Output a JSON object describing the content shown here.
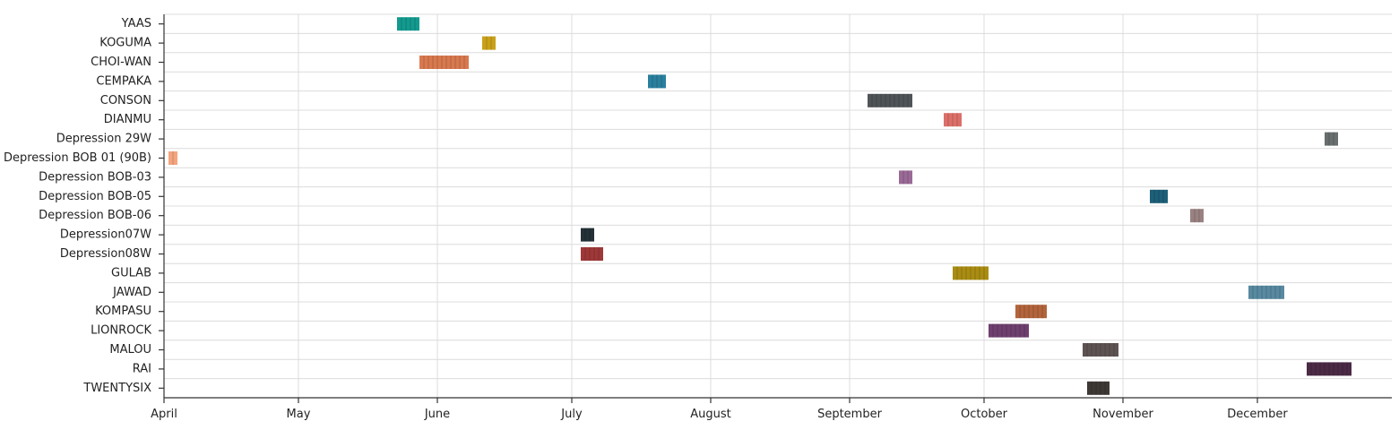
{
  "chart_data": {
    "type": "timeline",
    "x_axis": {
      "ticks": [
        "April",
        "May",
        "June",
        "July",
        "August",
        "September",
        "October",
        "November",
        "December"
      ],
      "range": [
        "2021-04-01",
        "2021-12-31"
      ]
    },
    "grid": true,
    "rows": [
      {
        "label": "YAAS",
        "start": "2021-05-23",
        "end": "2021-05-28",
        "color": "#139a8f"
      },
      {
        "label": "KOGUMA",
        "start": "2021-06-11",
        "end": "2021-06-14",
        "color": "#c9a11a"
      },
      {
        "label": "CHOI-WAN",
        "start": "2021-05-28",
        "end": "2021-06-08",
        "color": "#d8794f"
      },
      {
        "label": "CEMPAKA",
        "start": "2021-07-18",
        "end": "2021-07-22",
        "color": "#2a7f9e"
      },
      {
        "label": "CONSON",
        "start": "2021-09-05",
        "end": "2021-09-15",
        "color": "#4f5457"
      },
      {
        "label": "DIANMU",
        "start": "2021-09-22",
        "end": "2021-09-26",
        "color": "#dc6f6a"
      },
      {
        "label": "Depression 29W",
        "start": "2021-12-16",
        "end": "2021-12-19",
        "color": "#686e6e"
      },
      {
        "label": "Depression BOB 01 (90B)",
        "start": "2021-04-02",
        "end": "2021-04-04",
        "color": "#f4a47e"
      },
      {
        "label": "Depression BOB-03",
        "start": "2021-09-12",
        "end": "2021-09-15",
        "color": "#9a6a96"
      },
      {
        "label": "Depression BOB-05",
        "start": "2021-11-07",
        "end": "2021-11-11",
        "color": "#1d5f78"
      },
      {
        "label": "Depression BOB-06",
        "start": "2021-11-16",
        "end": "2021-11-19",
        "color": "#9a8181"
      },
      {
        "label": "Depression07W",
        "start": "2021-07-03",
        "end": "2021-07-06",
        "color": "#243136"
      },
      {
        "label": "Depression08W",
        "start": "2021-07-03",
        "end": "2021-07-08",
        "color": "#9f3838"
      },
      {
        "label": "GULAB",
        "start": "2021-09-24",
        "end": "2021-10-02",
        "color": "#a98c12"
      },
      {
        "label": "JAWAD",
        "start": "2021-11-29",
        "end": "2021-12-07",
        "color": "#5889a0"
      },
      {
        "label": "KOMPASU",
        "start": "2021-10-08",
        "end": "2021-10-15",
        "color": "#b2643c"
      },
      {
        "label": "LIONROCK",
        "start": "2021-10-02",
        "end": "2021-10-11",
        "color": "#6e3f6f"
      },
      {
        "label": "MALOU",
        "start": "2021-10-23",
        "end": "2021-10-31",
        "color": "#5e5353"
      },
      {
        "label": "RAI",
        "start": "2021-12-12",
        "end": "2021-12-22",
        "color": "#4a2a45"
      },
      {
        "label": "TWENTYSIX",
        "start": "2021-10-24",
        "end": "2021-10-29",
        "color": "#3e3835"
      }
    ]
  }
}
